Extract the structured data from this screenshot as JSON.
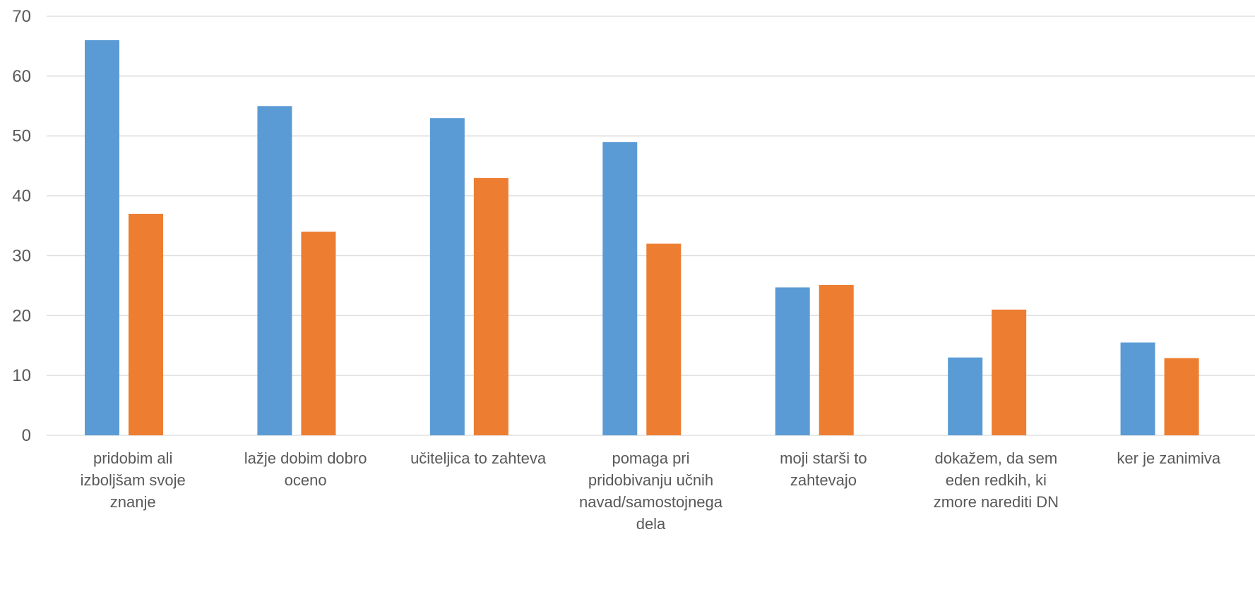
{
  "chart_data": {
    "type": "bar",
    "categories": [
      "pridobim ali izboljšam svoje znanje",
      "lažje dobim dobro oceno",
      "učiteljica to zahteva",
      "pomaga pri pridobivanju učnih navad/samostojnega dela",
      "moji starši to zahtevajo",
      "dokažem, da sem eden redkih, ki zmore narediti DN",
      "ker je zanimiva"
    ],
    "category_lines": [
      [
        "pridobim ali",
        "izboljšam svoje",
        "znanje"
      ],
      [
        "lažje dobim dobro",
        "oceno"
      ],
      [
        "učiteljica to zahteva"
      ],
      [
        "pomaga pri",
        "pridobivanju učnih",
        "navad/samostojnega",
        "dela"
      ],
      [
        "moji starši to",
        "zahtevajo"
      ],
      [
        "dokažem, da sem",
        "eden redkih, ki",
        "zmore narediti DN"
      ],
      [
        "ker je zanimiva"
      ]
    ],
    "series": [
      {
        "values": [
          66,
          55,
          53,
          49,
          24.7,
          13,
          15.5
        ],
        "color": "#5b9bd5"
      },
      {
        "values": [
          37,
          34,
          43,
          32,
          25.1,
          21,
          12.9
        ],
        "color": "#ed7d31"
      }
    ],
    "ylim": [
      0,
      70
    ],
    "yticks": [
      0,
      10,
      20,
      30,
      40,
      50,
      60,
      70
    ],
    "grid": true,
    "legend": "none",
    "title": "",
    "xlabel": "",
    "ylabel": ""
  }
}
